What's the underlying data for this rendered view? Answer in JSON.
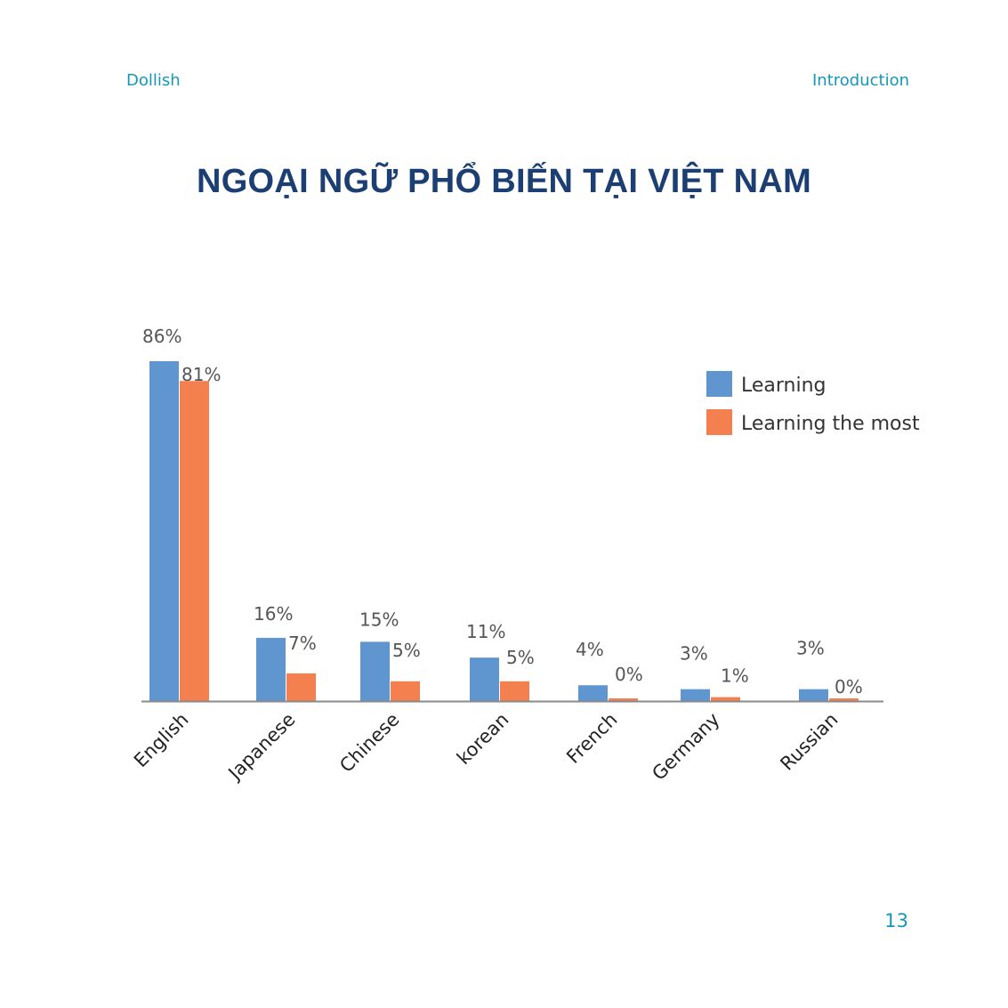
{
  "header": {
    "left": "Dollish",
    "right": "Introduction"
  },
  "page_number": "13",
  "colors": {
    "learning": "#6096d0",
    "learning_most": "#f47f4f",
    "title": "#1c3f73",
    "accent": "#1597b8"
  },
  "chart_data": {
    "type": "bar",
    "title": "NGOẠI NGỮ PHỔ BIẾN TẠI VIỆT NAM",
    "categories": [
      "English",
      "Japanese",
      "Chinese",
      "korean",
      "French",
      "Germany",
      "Russian"
    ],
    "series": [
      {
        "name": "Learning",
        "values": [
          86,
          16,
          15,
          11,
          4,
          3,
          3
        ],
        "labels": [
          "86%",
          "16%",
          "15%",
          "11%",
          "4%",
          "3%",
          "3%"
        ]
      },
      {
        "name": "Learning the most",
        "values": [
          81,
          7,
          5,
          5,
          0,
          1,
          0
        ],
        "labels": [
          "81%",
          "7%",
          "5%",
          "5%",
          "0%",
          "1%",
          "0%"
        ]
      }
    ],
    "legend_position": "top-right",
    "grid": false
  }
}
